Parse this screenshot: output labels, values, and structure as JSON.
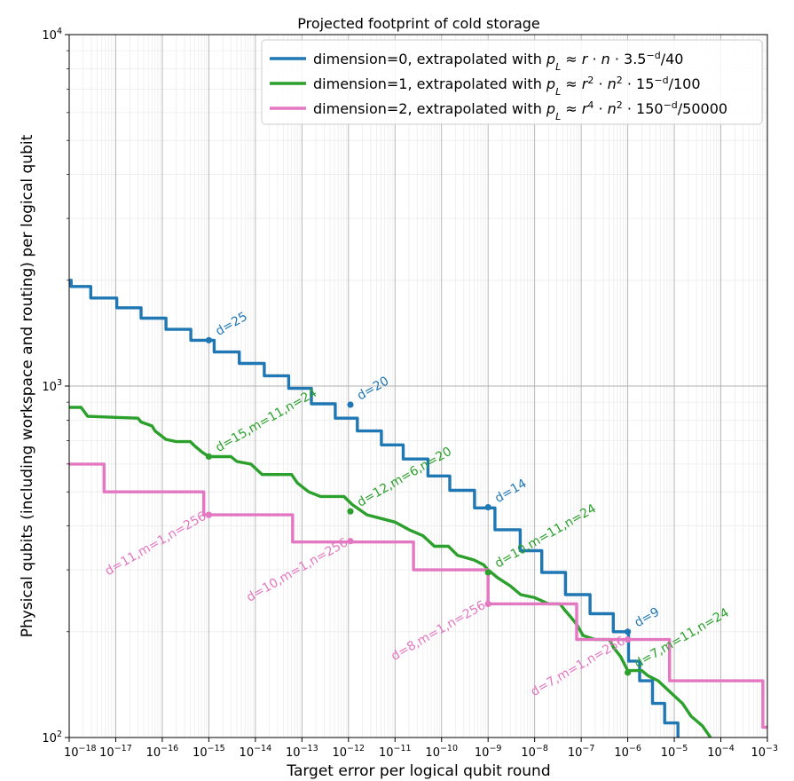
{
  "chart_data": {
    "type": "line",
    "title": "Projected footprint of cold storage",
    "xlabel": "Target error per logical qubit round",
    "ylabel": "Physical qubits (including workspace and routing) per logical qubit",
    "xscale": "log",
    "yscale": "log",
    "xlim": [
      1e-18,
      0.001
    ],
    "ylim": [
      100,
      10000
    ],
    "grid": "major and minor",
    "legend_position": "top-right",
    "x_ticks": [
      {
        "value": 1e-18,
        "label": "10",
        "exp": "−18"
      },
      {
        "value": 1e-17,
        "label": "10",
        "exp": "−17"
      },
      {
        "value": 1e-16,
        "label": "10",
        "exp": "−16"
      },
      {
        "value": 1e-15,
        "label": "10",
        "exp": "−15"
      },
      {
        "value": 1e-14,
        "label": "10",
        "exp": "−14"
      },
      {
        "value": 1e-13,
        "label": "10",
        "exp": "−13"
      },
      {
        "value": 1e-12,
        "label": "10",
        "exp": "−12"
      },
      {
        "value": 1e-11,
        "label": "10",
        "exp": "−11"
      },
      {
        "value": 1e-10,
        "label": "10",
        "exp": "−10"
      },
      {
        "value": 1e-09,
        "label": "10",
        "exp": "−9"
      },
      {
        "value": 1e-08,
        "label": "10",
        "exp": "−8"
      },
      {
        "value": 1e-07,
        "label": "10",
        "exp": "−7"
      },
      {
        "value": 1e-06,
        "label": "10",
        "exp": "−6"
      },
      {
        "value": 1e-05,
        "label": "10",
        "exp": "−5"
      },
      {
        "value": 0.0001,
        "label": "10",
        "exp": "−4"
      },
      {
        "value": 0.001,
        "label": "10",
        "exp": "−3"
      }
    ],
    "y_ticks": [
      {
        "value": 100,
        "label": "10",
        "exp": "2"
      },
      {
        "value": 1000,
        "label": "10",
        "exp": "3"
      },
      {
        "value": 10000,
        "label": "10",
        "exp": "4"
      }
    ],
    "series": [
      {
        "name": "dimension=0, extrapolated with",
        "formula": "p_L ≈ r·n·3.5^−d/40",
        "legend_formula": [
          {
            "t": "p",
            "i": true
          },
          {
            "t": "L",
            "sub": true,
            "i": true
          },
          {
            "t": " ≈ "
          },
          {
            "t": "r",
            "i": true
          },
          {
            "t": " · "
          },
          {
            "t": "n",
            "i": true
          },
          {
            "t": " · 3.5"
          },
          {
            "t": "−d",
            "sup": true
          },
          {
            "t": "/40"
          }
        ],
        "color": "#1f77b4",
        "x": [
          1e-18,
          1.1e-18,
          1.1e-18,
          2.9e-18,
          2.9e-18,
          1.05e-17,
          1.05e-17,
          3.5e-17,
          3.5e-17,
          1.2e-16,
          1.2e-16,
          4.1e-16,
          4.1e-16,
          1.3e-15,
          1.3e-15,
          4.5e-15,
          4.5e-15,
          1.55e-14,
          1.55e-14,
          5.2e-14,
          5.2e-14,
          1.6e-13,
          1.6e-13,
          5.2e-13,
          5.2e-13,
          1.55e-12,
          1.55e-12,
          5.1e-12,
          5.1e-12,
          1.5e-11,
          1.5e-11,
          5.1e-11,
          5.1e-11,
          1.5e-10,
          1.5e-10,
          5.1e-10,
          5.1e-10,
          1.4e-09,
          1.4e-09,
          4.9e-09,
          4.9e-09,
          1.42e-08,
          1.42e-08,
          4.6e-08,
          4.6e-08,
          1.55e-07,
          1.55e-07,
          4.9e-07,
          4.9e-07,
          1.04e-06,
          1.04e-06,
          1.8e-06,
          1.8e-06,
          3.4e-06,
          3.4e-06,
          6.2e-06,
          6.2e-06,
          1.2e-05,
          1.2e-05
        ],
        "y": [
          2000,
          2000,
          1920,
          1920,
          1780,
          1780,
          1670,
          1670,
          1560,
          1560,
          1450,
          1450,
          1350,
          1350,
          1250,
          1250,
          1160,
          1160,
          1070,
          1070,
          985,
          985,
          890,
          890,
          810,
          810,
          745,
          745,
          680,
          680,
          620,
          620,
          555,
          555,
          505,
          505,
          450,
          450,
          390,
          390,
          340,
          340,
          295,
          295,
          255,
          255,
          225,
          225,
          200,
          200,
          165,
          165,
          145,
          145,
          125,
          125,
          110,
          110,
          100
        ]
      },
      {
        "name": "dimension=1, extrapolated with",
        "formula": "p_L ≈ r^2·n^2·15^−d/100",
        "legend_formula": [
          {
            "t": "p",
            "i": true
          },
          {
            "t": "L",
            "sub": true,
            "i": true
          },
          {
            "t": " ≈ "
          },
          {
            "t": "r",
            "i": true
          },
          {
            "t": "2",
            "sup": true
          },
          {
            "t": " · "
          },
          {
            "t": "n",
            "i": true
          },
          {
            "t": "2",
            "sup": true
          },
          {
            "t": " · 15"
          },
          {
            "t": "−d",
            "sup": true
          },
          {
            "t": "/100"
          }
        ],
        "color": "#2ca02c",
        "x": [
          1e-18,
          1.8e-18,
          2.5e-18,
          3e-17,
          3.5e-17,
          6e-17,
          7e-17,
          1.2e-16,
          2e-16,
          4e-16,
          5e-16,
          7e-16,
          1e-15,
          3e-15,
          4e-15,
          8e-15,
          1.4e-14,
          6e-14,
          8e-14,
          1.4e-13,
          2.5e-13,
          8e-13,
          1.2e-12,
          2.5e-12,
          5e-12,
          1e-11,
          2e-11,
          4e-11,
          7e-11,
          1.4e-10,
          2.2e-10,
          5e-10,
          8e-10,
          1e-09,
          1.6e-09,
          3e-09,
          5e-09,
          1e-08,
          2e-08,
          3.5e-08,
          4.5e-08,
          6e-08,
          8e-08,
          1.1e-07,
          2e-07,
          4e-07,
          5e-07,
          7e-07,
          1e-06,
          2e-06,
          2.7e-06,
          4.5e-06,
          8e-06,
          1.5e-05,
          2.3e-05,
          4e-05,
          6e-05
        ],
        "y": [
          870,
          870,
          820,
          810,
          790,
          770,
          745,
          705,
          695,
          695,
          675,
          650,
          630,
          630,
          610,
          600,
          560,
          560,
          530,
          500,
          485,
          485,
          460,
          430,
          420,
          410,
          390,
          375,
          350,
          350,
          330,
          320,
          310,
          300,
          285,
          270,
          255,
          250,
          240,
          240,
          230,
          220,
          210,
          195,
          190,
          190,
          180,
          170,
          155,
          155,
          150,
          145,
          135,
          125,
          115,
          108,
          100
        ]
      },
      {
        "name": "dimension=2, extrapolated with",
        "formula": "p_L ≈ r^4·n^2·150^−d/50000",
        "legend_formula": [
          {
            "t": "p",
            "i": true
          },
          {
            "t": "L",
            "sub": true,
            "i": true
          },
          {
            "t": " ≈ "
          },
          {
            "t": "r",
            "i": true
          },
          {
            "t": "4",
            "sup": true
          },
          {
            "t": " · "
          },
          {
            "t": "n",
            "i": true
          },
          {
            "t": "2",
            "sup": true
          },
          {
            "t": " · 150"
          },
          {
            "t": "−d",
            "sup": true
          },
          {
            "t": "/50000"
          }
        ],
        "color": "#e377c2",
        "x": [
          1e-18,
          5.6e-18,
          5.6e-18,
          7.8e-16,
          7.8e-16,
          6.3e-14,
          6.3e-14,
          6.3e-12,
          6.3e-12,
          2.5e-11,
          2.5e-11,
          1e-09,
          1e-09,
          8e-08,
          8e-08,
          7.9e-06,
          7.9e-06,
          0.0008,
          0.0008,
          0.001
        ],
        "y": [
          600,
          600,
          500,
          500,
          430,
          430,
          360,
          360,
          360,
          360,
          300,
          300,
          240,
          240,
          190,
          190,
          145,
          145,
          107,
          107
        ]
      }
    ],
    "annotations": [
      {
        "text": "d=25",
        "x": 1e-15,
        "y": 1350,
        "series": 0
      },
      {
        "text": "d=20",
        "x": 1.1e-12,
        "y": 885,
        "series": 0
      },
      {
        "text": "d=14",
        "x": 1e-09,
        "y": 452,
        "series": 0
      },
      {
        "text": "d=9",
        "x": 1e-06,
        "y": 200,
        "series": 0
      },
      {
        "text": "d=15,m=11,n=24",
        "x": 1e-15,
        "y": 630,
        "series": 1
      },
      {
        "text": "d=12,m=6,n=20",
        "x": 1.1e-12,
        "y": 440,
        "series": 1
      },
      {
        "text": "d=10,m=11,n=24",
        "x": 1e-09,
        "y": 295,
        "series": 1
      },
      {
        "text": "d=7,m=11,n=24",
        "x": 1e-06,
        "y": 153,
        "series": 1
      },
      {
        "text": "d=11,m=1,n=256",
        "x": 1e-15,
        "y": 430,
        "series": 2
      },
      {
        "text": "d=10,m=1,n=256",
        "x": 1.1e-12,
        "y": 362,
        "series": 2
      },
      {
        "text": "d=8,m=1,n=256",
        "x": 1e-09,
        "y": 240,
        "series": 2
      },
      {
        "text": "d=7,m=1,n=256",
        "x": 1e-06,
        "y": 190,
        "series": 2
      }
    ]
  }
}
